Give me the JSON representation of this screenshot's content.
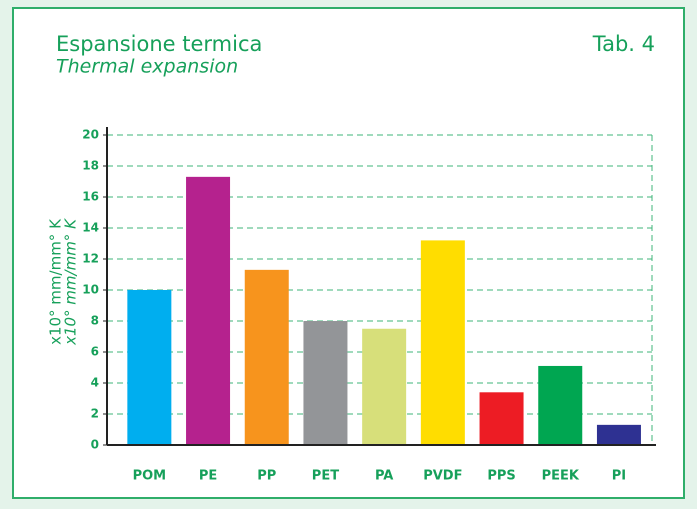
{
  "chart_data": {
    "type": "bar",
    "title": "Espansione termica",
    "subtitle": "Thermal expansion",
    "table_label": "Tab. 4",
    "ylabel": "x10° mm/mm° K",
    "ylabel_en": "x10° mm/mm° K",
    "categories": [
      "POM",
      "PE",
      "PP",
      "PET",
      "PA",
      "PVDF",
      "PPS",
      "PEEK",
      "PI"
    ],
    "values": [
      10.0,
      17.3,
      11.3,
      8.0,
      7.5,
      13.2,
      3.4,
      5.1,
      1.3
    ],
    "colors": [
      "#00aeef",
      "#b5228e",
      "#f7941d",
      "#939598",
      "#d7df7a",
      "#ffdd00",
      "#ed1c24",
      "#00a651",
      "#2e3192"
    ],
    "ylim": [
      0,
      20
    ],
    "yticks": [
      0,
      2,
      4,
      6,
      8,
      10,
      12,
      14,
      16,
      18,
      20
    ],
    "grid": true
  }
}
